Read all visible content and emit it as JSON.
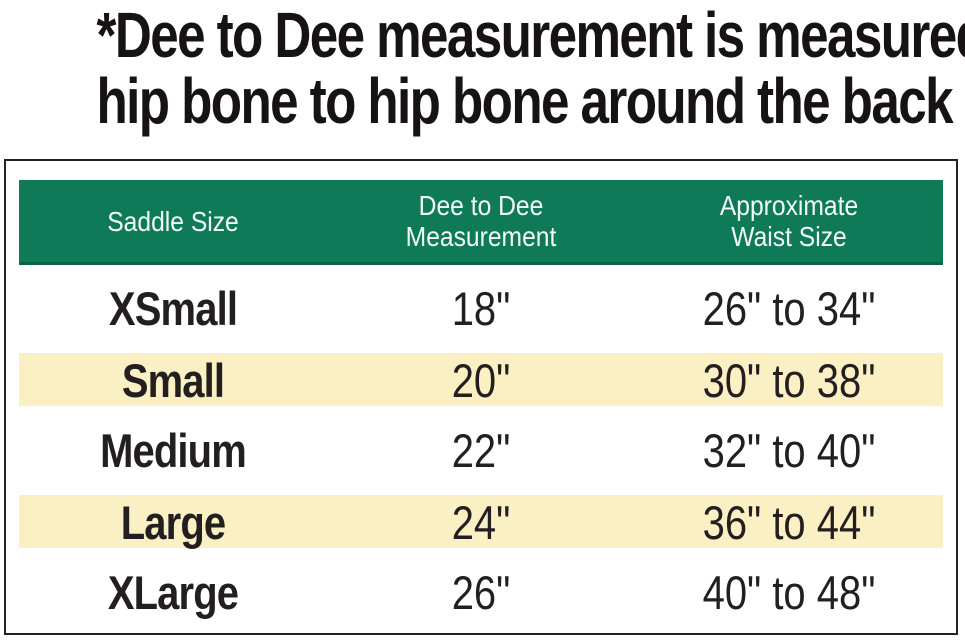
{
  "heading": {
    "line1": "*Dee to Dee measurement is measured",
    "line2": "hip bone to hip bone around the back"
  },
  "table": {
    "columns": [
      {
        "line1": "Saddle Size",
        "line2": ""
      },
      {
        "line1": "Dee to Dee",
        "line2": "Measurement"
      },
      {
        "line1": "Approximate",
        "line2": "Waist Size"
      }
    ],
    "rows": [
      {
        "size": "XSmall",
        "dee_to_dee": "18\"",
        "waist": "26\" to 34\"",
        "highlighted": false
      },
      {
        "size": "Small",
        "dee_to_dee": "20\"",
        "waist": "30\" to 38\"",
        "highlighted": true
      },
      {
        "size": "Medium",
        "dee_to_dee": "22\"",
        "waist": "32\" to 40\"",
        "highlighted": false
      },
      {
        "size": "Large",
        "dee_to_dee": "24\"",
        "waist": "36\" to 44\"",
        "highlighted": true
      },
      {
        "size": "XLarge",
        "dee_to_dee": "26\"",
        "waist": "40\" to 48\"",
        "highlighted": false
      }
    ]
  },
  "colors": {
    "header_bg": "#0E7A57",
    "header_bg_edge": "#0A6349",
    "header_text": "#F2FBF7",
    "stripe_bg": "#FAF0C3",
    "text": "#231F20",
    "frame_border": "#222222"
  },
  "chart_data": {
    "type": "table",
    "title": "*Dee to Dee measurement is measured hip bone to hip bone around the back",
    "columns": [
      "Saddle Size",
      "Dee to Dee Measurement",
      "Approximate Waist Size"
    ],
    "rows": [
      [
        "XSmall",
        "18\"",
        "26\" to 34\""
      ],
      [
        "Small",
        "20\"",
        "30\" to 38\""
      ],
      [
        "Medium",
        "22\"",
        "32\" to 40\""
      ],
      [
        "Large",
        "24\"",
        "36\" to 44\""
      ],
      [
        "XLarge",
        "26\"",
        "40\" to 48\""
      ]
    ]
  }
}
